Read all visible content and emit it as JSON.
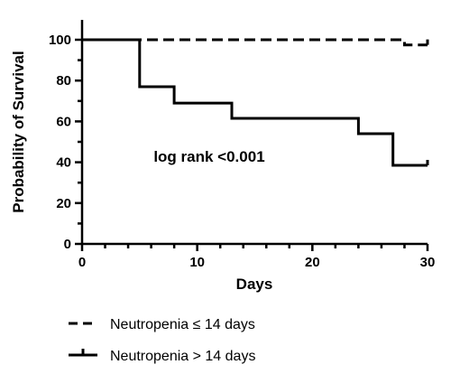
{
  "chart_data": {
    "type": "line",
    "subtype": "kaplan-meier step",
    "xlabel": "Days",
    "ylabel": "Probability of Survival",
    "xlim": [
      0,
      30
    ],
    "ylim": [
      0,
      100
    ],
    "xticks": [
      0,
      10,
      20,
      30
    ],
    "yticks": [
      0,
      20,
      40,
      60,
      80,
      100
    ],
    "annotation": "log rank <0.001",
    "legend_position": "bottom",
    "series": [
      {
        "name": "Neutropenia ≤ 14 days",
        "style": "dashed",
        "color": "#000000",
        "points": [
          [
            0,
            100
          ],
          [
            28,
            100
          ],
          [
            28,
            97.5
          ],
          [
            30,
            97.5
          ]
        ]
      },
      {
        "name": "Neutropenia > 14 days",
        "style": "solid",
        "color": "#000000",
        "points": [
          [
            0,
            100
          ],
          [
            5,
            100
          ],
          [
            5,
            77
          ],
          [
            8,
            77
          ],
          [
            8,
            69
          ],
          [
            13,
            69
          ],
          [
            13,
            61.5
          ],
          [
            24,
            61.5
          ],
          [
            24,
            54
          ],
          [
            27,
            54
          ],
          [
            27,
            38.5
          ],
          [
            30,
            38.5
          ]
        ]
      }
    ]
  }
}
